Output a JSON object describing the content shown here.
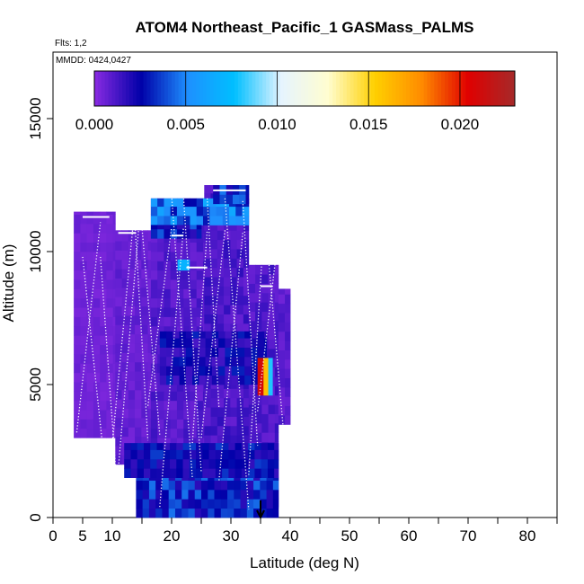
{
  "chart_data": {
    "type": "heatmap",
    "title": "ATOM4 Northeast_Pacific_1 GASMass_PALMS",
    "flights_note": "Flts: 1,2",
    "dates_note": "MMDD: 0424,0427",
    "xlabel": "Latitude (deg N)",
    "ylabel": "Altitude (m)",
    "xlim": [
      0,
      85
    ],
    "ylim": [
      0,
      17500
    ],
    "x_tick_labels": [
      "0",
      "5",
      "10",
      "20",
      "30",
      "40",
      "50",
      "60",
      "70",
      "80"
    ],
    "x_tick_values": [
      0,
      5,
      10,
      20,
      30,
      40,
      50,
      60,
      70,
      80
    ],
    "y_tick_labels": [
      "0",
      "5000",
      "10000",
      "15000"
    ],
    "y_tick_values": [
      0,
      5000,
      10000,
      15000
    ],
    "colorbar": {
      "min": 0.0,
      "max": 0.023,
      "tick_labels": [
        "0.000",
        "0.005",
        "0.010",
        "0.015",
        "0.020"
      ],
      "tick_values": [
        0.0,
        0.005,
        0.01,
        0.015,
        0.02
      ],
      "colors": [
        "#8a2be2",
        "#0000a8",
        "#1e90ff",
        "#00bfff",
        "#e6f4ff",
        "#fffdd0",
        "#ffd000",
        "#ff8c00",
        "#e00000",
        "#a52a2a"
      ]
    },
    "base_color": "#8a2be2",
    "columns": [
      {
        "lat": [
          3.5,
          10.5
        ],
        "alt": [
          3000,
          11500
        ],
        "value": 0.0005
      },
      {
        "lat": [
          10.5,
          16.5
        ],
        "alt": [
          2000,
          10800
        ],
        "value": 0.0007
      },
      {
        "lat": [
          16.5,
          25.5
        ],
        "alt": [
          200,
          12000
        ],
        "value": 0.001
      },
      {
        "lat": [
          25.5,
          33
        ],
        "alt": [
          300,
          12500
        ],
        "value": 0.0012
      },
      {
        "lat": [
          33,
          38
        ],
        "alt": [
          400,
          9500
        ],
        "value": 0.0011
      },
      {
        "lat": [
          38,
          40
        ],
        "alt": [
          3500,
          8600
        ],
        "value": 0.0009
      }
    ],
    "patches": [
      {
        "lat": [
          16.5,
          33
        ],
        "alt": [
          11000,
          12000
        ],
        "value": 0.0045
      },
      {
        "lat": [
          27,
          33
        ],
        "alt": [
          11800,
          12500
        ],
        "value": 0.0035
      },
      {
        "lat": [
          16.5,
          25
        ],
        "alt": [
          10500,
          11000
        ],
        "value": 0.003
      },
      {
        "lat": [
          14,
          38
        ],
        "alt": [
          0,
          1500
        ],
        "value": 0.0032
      },
      {
        "lat": [
          12,
          38
        ],
        "alt": [
          1500,
          2800
        ],
        "value": 0.0025
      },
      {
        "lat": [
          18,
          36
        ],
        "alt": [
          5000,
          7000
        ],
        "value": 0.0022
      },
      {
        "lat": [
          21,
          23
        ],
        "alt": [
          9300,
          9700
        ],
        "value": 0.007
      },
      {
        "lat": [
          34.5,
          35.5
        ],
        "alt": [
          4600,
          6000
        ],
        "value": 0.021
      },
      {
        "lat": [
          35.5,
          36.3
        ],
        "alt": [
          4600,
          6000
        ],
        "value": 0.016
      },
      {
        "lat": [
          36.3,
          37
        ],
        "alt": [
          4600,
          6000
        ],
        "value": 0.008
      }
    ],
    "flight_track_latitudes": [
      [
        5,
        9.5,
        13.5,
        16,
        20,
        23.5,
        26,
        28,
        32,
        34.5,
        38
      ],
      [
        4,
        8,
        11,
        14.5,
        18,
        22,
        25,
        29,
        33,
        35.5,
        39
      ]
    ],
    "marker_arrow_lat": 35
  }
}
